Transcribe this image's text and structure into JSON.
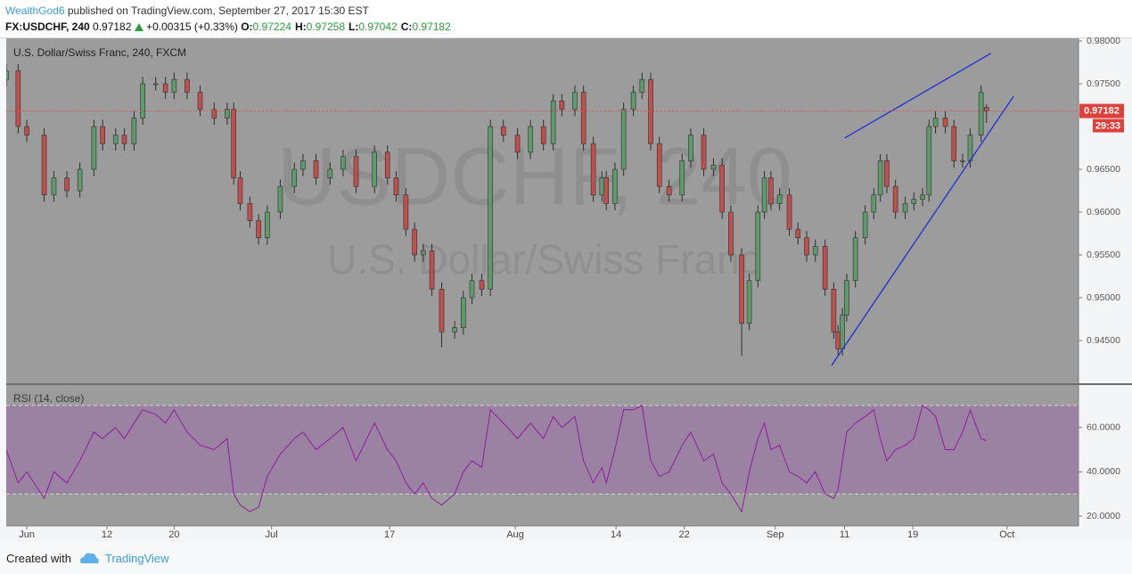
{
  "header": {
    "author": "WealthGod6",
    "published": "published on TradingView.com, September 27, 2017 15:30 EST",
    "symbol": "FX:USDCHF, 240",
    "last": "0.97182",
    "change": "+0.00315 (+0.33%)",
    "ohlc": [
      {
        "label": "O:",
        "value": "0.97224"
      },
      {
        "label": "H:",
        "value": "0.97258"
      },
      {
        "label": "L:",
        "value": "0.97042"
      },
      {
        "label": "C:",
        "value": "0.97182"
      }
    ]
  },
  "footer": {
    "created": "Created with",
    "brand": "TradingView"
  },
  "chart_data": [
    {
      "type": "candlestick",
      "title": "U.S. Dollar/Swiss Franc, 240, FXCM",
      "watermark": [
        "USDCHF, 240",
        "U.S. Dollar/Swiss Franc"
      ],
      "up_color": "#5f9a6c",
      "down_color": "#c0504d",
      "x": [
        0,
        1.1,
        1.9,
        3.5,
        4.4,
        5.6,
        6.8,
        8.1,
        8.9,
        10.1,
        10.9,
        11.8,
        12.6,
        13.8,
        14.7,
        15.5,
        16.7,
        17.9,
        19.2,
        20.4,
        21.0,
        21.6,
        22.5,
        23.3,
        24.1,
        25.3,
        26.6,
        27.4,
        28.6,
        29.9,
        31.1,
        32.3,
        34.0,
        35.2,
        36.0,
        36.9,
        37.7,
        38.5,
        39.3,
        40.2,
        41.4,
        42.2,
        43.0,
        43.9,
        44.7,
        45.9,
        47.2,
        48.4,
        49.6,
        50.5,
        51.3,
        52.5,
        53.3,
        54.2,
        55.0,
        55.4,
        56.2,
        57.0,
        57.9,
        58.7,
        59.5,
        60.3,
        61.2,
        62.4,
        63.2,
        64.4,
        65.3,
        66.1,
        66.9,
        67.9,
        68.6,
        69.4,
        70.0,
        70.6,
        71.4,
        72.3,
        73.1,
        73.9,
        74.7,
        75.6,
        76.4,
        76.8,
        77.2,
        77.6,
        78.4,
        79.3,
        80.1,
        80.7,
        81.3,
        82.1,
        83.0,
        83.8,
        84.6,
        85.2,
        85.8,
        86.7,
        87.5,
        88.3,
        89.0,
        90.0,
        90.5
      ],
      "open": [
        0.9755,
        0.9765,
        0.97,
        0.969,
        0.962,
        0.964,
        0.9625,
        0.965,
        0.97,
        0.968,
        0.969,
        0.968,
        0.971,
        0.975,
        0.975,
        0.974,
        0.9755,
        0.974,
        0.972,
        0.971,
        0.972,
        0.964,
        0.961,
        0.959,
        0.957,
        0.96,
        0.963,
        0.965,
        0.966,
        0.964,
        0.965,
        0.9665,
        0.963,
        0.967,
        0.964,
        0.962,
        0.958,
        0.955,
        0.9555,
        0.951,
        0.946,
        0.9465,
        0.95,
        0.952,
        0.951,
        0.97,
        0.969,
        0.967,
        0.97,
        0.968,
        0.973,
        0.972,
        0.974,
        0.968,
        0.962,
        0.964,
        0.961,
        0.965,
        0.972,
        0.974,
        0.9755,
        0.968,
        0.963,
        0.962,
        0.966,
        0.969,
        0.965,
        0.9655,
        0.96,
        0.955,
        0.947,
        0.952,
        0.96,
        0.964,
        0.961,
        0.962,
        0.958,
        0.957,
        0.955,
        0.956,
        0.951,
        0.946,
        0.944,
        0.948,
        0.952,
        0.957,
        0.96,
        0.962,
        0.966,
        0.963,
        0.96,
        0.961,
        0.9615,
        0.962,
        0.97,
        0.971,
        0.97,
        0.966,
        0.966,
        0.969,
        0.97224
      ],
      "high": [
        0.9773,
        0.9773,
        0.9708,
        0.9698,
        0.9648,
        0.9648,
        0.9658,
        0.9708,
        0.9708,
        0.9698,
        0.9698,
        0.9718,
        0.9758,
        0.9758,
        0.9758,
        0.9763,
        0.9763,
        0.9748,
        0.9728,
        0.9728,
        0.9728,
        0.9648,
        0.9618,
        0.9598,
        0.9608,
        0.9638,
        0.9658,
        0.9668,
        0.9668,
        0.9658,
        0.9673,
        0.9673,
        0.9678,
        0.9678,
        0.9648,
        0.9628,
        0.9588,
        0.9563,
        0.9563,
        0.9518,
        0.9473,
        0.9508,
        0.9528,
        0.9528,
        0.9708,
        0.9708,
        0.9698,
        0.9708,
        0.9708,
        0.9738,
        0.9738,
        0.9748,
        0.9748,
        0.9688,
        0.9648,
        0.9648,
        0.9658,
        0.9728,
        0.9748,
        0.9763,
        0.9763,
        0.9688,
        0.9638,
        0.9668,
        0.9698,
        0.9698,
        0.9663,
        0.9663,
        0.9608,
        0.9558,
        0.9528,
        0.9608,
        0.9648,
        0.9648,
        0.9628,
        0.9628,
        0.9588,
        0.9578,
        0.9568,
        0.9568,
        0.9518,
        0.9468,
        0.9488,
        0.9528,
        0.9578,
        0.9608,
        0.9628,
        0.9668,
        0.9668,
        0.9638,
        0.9618,
        0.9623,
        0.9628,
        0.9708,
        0.9718,
        0.9718,
        0.9708,
        0.9668,
        0.9698,
        0.9748,
        0.97258
      ],
      "low": [
        0.9747,
        0.9692,
        0.9682,
        0.9612,
        0.9612,
        0.9617,
        0.9617,
        0.9642,
        0.9672,
        0.9672,
        0.9672,
        0.9672,
        0.9702,
        0.9742,
        0.9732,
        0.9732,
        0.9732,
        0.9712,
        0.9702,
        0.9702,
        0.9632,
        0.9602,
        0.9582,
        0.9562,
        0.9562,
        0.9592,
        0.9622,
        0.9642,
        0.9632,
        0.9632,
        0.9642,
        0.9622,
        0.9622,
        0.9632,
        0.9612,
        0.9572,
        0.9542,
        0.9542,
        0.9502,
        0.9442,
        0.9452,
        0.9457,
        0.9492,
        0.9502,
        0.9502,
        0.9682,
        0.9662,
        0.9662,
        0.9672,
        0.9672,
        0.9712,
        0.9712,
        0.9672,
        0.9612,
        0.9612,
        0.9602,
        0.9602,
        0.9642,
        0.9712,
        0.9732,
        0.9672,
        0.9622,
        0.9612,
        0.9612,
        0.9652,
        0.9642,
        0.9642,
        0.9592,
        0.9542,
        0.9432,
        0.9462,
        0.9512,
        0.9592,
        0.9602,
        0.9602,
        0.9572,
        0.9562,
        0.9542,
        0.9542,
        0.9502,
        0.9452,
        0.9432,
        0.9432,
        0.9472,
        0.9512,
        0.9562,
        0.9592,
        0.9612,
        0.9622,
        0.9592,
        0.9592,
        0.9602,
        0.9607,
        0.9612,
        0.9692,
        0.9692,
        0.9652,
        0.9652,
        0.9652,
        0.9682,
        0.97042
      ],
      "close": [
        0.9765,
        0.97,
        0.969,
        0.962,
        0.964,
        0.9625,
        0.965,
        0.97,
        0.968,
        0.969,
        0.968,
        0.971,
        0.975,
        0.975,
        0.974,
        0.9755,
        0.974,
        0.972,
        0.971,
        0.972,
        0.964,
        0.961,
        0.959,
        0.957,
        0.96,
        0.963,
        0.965,
        0.966,
        0.964,
        0.965,
        0.9665,
        0.963,
        0.967,
        0.964,
        0.962,
        0.958,
        0.955,
        0.9555,
        0.951,
        0.946,
        0.9465,
        0.95,
        0.952,
        0.951,
        0.97,
        0.969,
        0.967,
        0.97,
        0.968,
        0.973,
        0.972,
        0.974,
        0.968,
        0.962,
        0.964,
        0.961,
        0.965,
        0.972,
        0.974,
        0.9755,
        0.968,
        0.963,
        0.962,
        0.966,
        0.969,
        0.965,
        0.9655,
        0.96,
        0.955,
        0.947,
        0.952,
        0.96,
        0.964,
        0.961,
        0.962,
        0.958,
        0.957,
        0.955,
        0.956,
        0.951,
        0.946,
        0.944,
        0.948,
        0.952,
        0.957,
        0.96,
        0.962,
        0.966,
        0.963,
        0.96,
        0.961,
        0.9615,
        0.962,
        0.97,
        0.971,
        0.97,
        0.966,
        0.966,
        0.969,
        0.974,
        0.97182
      ],
      "last_price": 0.97182,
      "last_price_color": "#e0403a",
      "countdown": "29:33",
      "trendlines": [
        {
          "x": [
            77.4,
            90.9
          ],
          "y": [
            0.96865,
            0.97854
          ]
        },
        {
          "x": [
            76.2,
            93.0
          ],
          "y": [
            0.94208,
            0.97354
          ]
        }
      ],
      "trendline_color": "#1f2fd6",
      "xlim": [
        0,
        99
      ],
      "ylim": [
        0.94,
        0.98031
      ],
      "yticks": [
        {
          "value": 0.945,
          "label": "0.94500"
        },
        {
          "value": 0.95,
          "label": "0.95000"
        },
        {
          "value": 0.955,
          "label": "0.95500"
        },
        {
          "value": 0.96,
          "label": "0.96000"
        },
        {
          "value": 0.965,
          "label": "0.96500"
        },
        {
          "value": 0.975,
          "label": "0.97500"
        },
        {
          "value": 0.98,
          "label": "0.98000"
        }
      ]
    },
    {
      "type": "line",
      "title": "RSI (14, close)",
      "color": "#8e1d9c",
      "band": [
        30,
        70
      ],
      "band_color": "#9b7aa6",
      "x": [
        0,
        1.1,
        1.9,
        3.5,
        4.4,
        5.6,
        6.8,
        8.1,
        8.9,
        10.1,
        10.9,
        11.8,
        12.6,
        13.8,
        14.7,
        15.5,
        16.7,
        17.9,
        19.2,
        20.4,
        21.0,
        21.6,
        22.5,
        23.3,
        24.1,
        25.3,
        26.6,
        27.4,
        28.6,
        29.9,
        31.1,
        32.3,
        34.0,
        35.2,
        36.0,
        36.9,
        37.7,
        38.5,
        39.3,
        40.2,
        41.4,
        42.2,
        43.0,
        43.9,
        44.7,
        45.9,
        47.2,
        48.4,
        49.6,
        50.5,
        51.3,
        52.5,
        53.3,
        54.2,
        55.0,
        55.4,
        56.2,
        57.0,
        57.9,
        58.7,
        59.5,
        60.3,
        61.2,
        62.4,
        63.2,
        64.4,
        65.3,
        66.1,
        66.9,
        67.9,
        68.6,
        69.4,
        70.0,
        70.6,
        71.4,
        72.3,
        73.1,
        73.9,
        74.7,
        75.6,
        76.4,
        76.8,
        77.2,
        77.6,
        78.4,
        79.3,
        80.1,
        80.7,
        81.3,
        82.1,
        83.0,
        83.8,
        84.6,
        85.2,
        85.8,
        86.7,
        87.5,
        88.3,
        89.0,
        90.0,
        90.5
      ],
      "values": [
        50,
        35,
        40,
        28,
        40,
        35,
        45,
        58,
        55,
        60,
        55,
        62,
        68,
        66,
        62,
        68,
        58,
        52,
        50,
        55,
        30,
        25,
        22,
        24,
        38,
        48,
        55,
        58,
        50,
        55,
        60,
        45,
        62,
        50,
        45,
        35,
        30,
        35,
        28,
        25,
        30,
        40,
        45,
        42,
        68,
        62,
        55,
        62,
        55,
        65,
        60,
        65,
        45,
        35,
        42,
        35,
        50,
        68,
        68,
        70,
        45,
        38,
        40,
        52,
        58,
        45,
        48,
        35,
        30,
        22,
        40,
        55,
        62,
        50,
        52,
        40,
        38,
        35,
        40,
        30,
        28,
        32,
        45,
        58,
        62,
        65,
        68,
        55,
        45,
        50,
        52,
        55,
        70,
        68,
        65,
        50,
        50,
        58,
        68,
        55,
        54
      ],
      "xlim": [
        0,
        99
      ],
      "ylim": [
        15.6,
        79.2
      ],
      "yticks": [
        {
          "value": 20,
          "label": "20.0000"
        },
        {
          "value": 40,
          "label": "40.0000"
        },
        {
          "value": 60,
          "label": "60.0000"
        }
      ],
      "xticks": [
        {
          "value": 1.9,
          "label": "Jun"
        },
        {
          "value": 9.3,
          "label": "12"
        },
        {
          "value": 15.5,
          "label": "20"
        },
        {
          "value": 24.5,
          "label": "Jul"
        },
        {
          "value": 35.4,
          "label": "17"
        },
        {
          "value": 47,
          "label": "Aug"
        },
        {
          "value": 56.3,
          "label": "14"
        },
        {
          "value": 62.6,
          "label": "22"
        },
        {
          "value": 71,
          "label": "Sep"
        },
        {
          "value": 77.4,
          "label": "11"
        },
        {
          "value": 83.7,
          "label": "19"
        },
        {
          "value": 92.4,
          "label": "Oct"
        }
      ]
    }
  ]
}
